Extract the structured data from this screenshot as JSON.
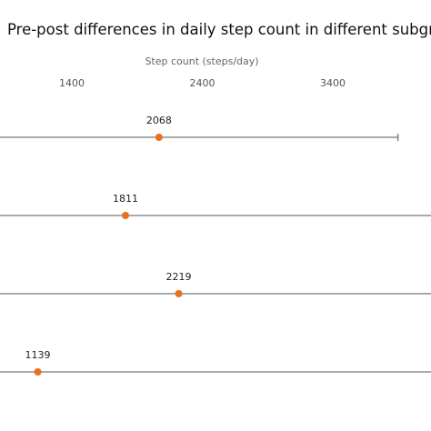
{
  "chart_data": {
    "type": "scatter",
    "title": "Pre-post differences in daily step count in different subgroups",
    "xlabel": "Step count (steps/day)",
    "ylabel": "",
    "x_ticks": [
      1400,
      2400,
      3400
    ],
    "xlim": [
      410,
      3600
    ],
    "grid": false,
    "legend": "none",
    "marker_color": "#E8701E",
    "line_color": "#555555",
    "points": [
      {
        "label": "2068",
        "value": 2068,
        "ci_low": 350,
        "ci_high": 3900
      },
      {
        "label": "1811",
        "value": 1811,
        "ci_low": 350,
        "ci_high": 4300
      },
      {
        "label": "2219",
        "value": 2219,
        "ci_low": 350,
        "ci_high": 4300
      },
      {
        "label": "1139",
        "value": 1139,
        "ci_low": 350,
        "ci_high": 4300
      }
    ]
  }
}
